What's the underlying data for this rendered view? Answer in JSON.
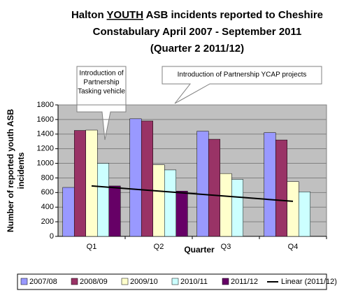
{
  "chart_data": {
    "type": "bar",
    "title": [
      "Halton ",
      "YOUTH",
      " ASB incidents reported to Cheshire",
      "Constabulary April 2007 - September 2011",
      "(Quarter 2 2011/12)"
    ],
    "y_label": [
      "Number of reported youth ASB",
      "incidents"
    ],
    "x_label": "Quarter",
    "categories": [
      "Q1",
      "Q2",
      "Q3",
      "Q4"
    ],
    "series": [
      {
        "name": "2007/08",
        "color": "#9999ff",
        "values": [
          670,
          1610,
          1440,
          1420
        ]
      },
      {
        "name": "2008/09",
        "color": "#993366",
        "values": [
          1450,
          1580,
          1330,
          1320
        ]
      },
      {
        "name": "2009/10",
        "color": "#ffffcc",
        "values": [
          1455,
          980,
          860,
          750
        ]
      },
      {
        "name": "2010/11",
        "color": "#ccffff",
        "values": [
          1000,
          910,
          780,
          610
        ]
      },
      {
        "name": "2011/12",
        "color": "#660066",
        "values": [
          690,
          620,
          null,
          null
        ]
      }
    ],
    "trendline": {
      "name": "Linear (2011/12)",
      "series": 4,
      "color": "#000000"
    },
    "annotations": [
      {
        "lines": [
          "Introduction of",
          "Partnership",
          "Tasking vehicle"
        ]
      },
      {
        "lines": [
          "Introduction of Partnership YCAP projects"
        ]
      }
    ],
    "ylim": [
      0,
      1800
    ],
    "yticks": [
      0,
      200,
      400,
      600,
      800,
      1000,
      1200,
      1400,
      1600,
      1800
    ],
    "grid": true,
    "legend": "bottom"
  }
}
